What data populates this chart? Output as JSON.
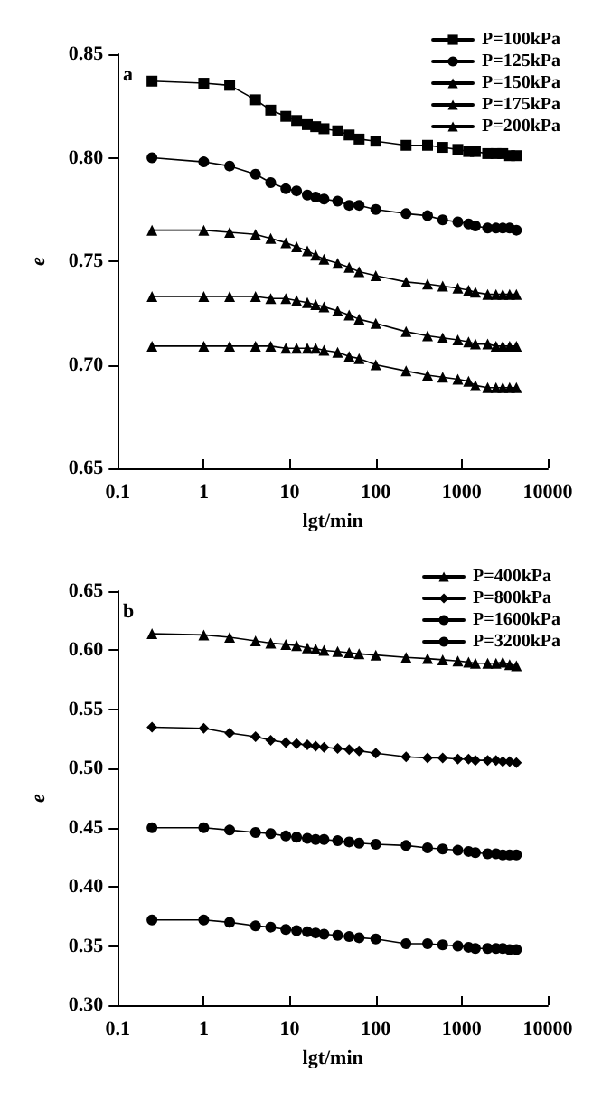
{
  "chart_data": [
    {
      "type": "line",
      "xlabel": "lgt/min",
      "ylabel": "e",
      "annotations": [
        "a"
      ],
      "log": "x",
      "xlim": [
        0.1,
        10000
      ],
      "xticks": [
        0.1,
        1,
        10,
        100,
        1000,
        10000
      ],
      "ylim": [
        0.65,
        0.85
      ],
      "yticks": [
        0.65,
        {
          "value": 0.7,
          "label": "0.70"
        },
        0.75,
        {
          "value": 0.8,
          "label": "0.80"
        },
        0.85
      ],
      "grid": false,
      "legend": "top right",
      "line_style": "solid",
      "x": [
        0.25,
        1,
        2,
        4,
        6,
        9,
        12,
        16,
        20,
        25,
        36,
        49,
        64,
        100,
        225,
        400,
        600,
        900,
        1200,
        1440,
        2000,
        2500,
        3000,
        3600,
        4320
      ],
      "series": [
        {
          "name": "P=100kPa",
          "color": "#000000",
          "marker": "square",
          "values": [
            0.837,
            0.836,
            0.835,
            0.828,
            0.823,
            0.82,
            0.818,
            0.816,
            0.815,
            0.814,
            0.813,
            0.811,
            0.809,
            0.808,
            0.806,
            0.806,
            0.805,
            0.804,
            0.803,
            0.803,
            0.802,
            0.802,
            0.802,
            0.801,
            0.801
          ]
        },
        {
          "name": "P=125kPa",
          "color": "#000000",
          "marker": "circle",
          "values": [
            0.8,
            0.798,
            0.796,
            0.792,
            0.788,
            0.785,
            0.784,
            0.782,
            0.781,
            0.78,
            0.779,
            0.777,
            0.777,
            0.775,
            0.773,
            0.772,
            0.77,
            0.769,
            0.768,
            0.767,
            0.766,
            0.766,
            0.766,
            0.766,
            0.765
          ]
        },
        {
          "name": "P=150kPa",
          "color": "#000000",
          "marker": "triangle",
          "values": [
            0.765,
            0.765,
            0.764,
            0.763,
            0.761,
            0.759,
            0.757,
            0.755,
            0.753,
            0.751,
            0.749,
            0.747,
            0.745,
            0.743,
            0.74,
            0.739,
            0.738,
            0.737,
            0.736,
            0.735,
            0.734,
            0.734,
            0.734,
            0.734,
            0.734
          ]
        },
        {
          "name": "P=175kPa",
          "color": "#000000",
          "marker": "triangle",
          "values": [
            0.733,
            0.733,
            0.733,
            0.733,
            0.732,
            0.732,
            0.731,
            0.73,
            0.729,
            0.728,
            0.726,
            0.724,
            0.722,
            0.72,
            0.716,
            0.714,
            0.713,
            0.712,
            0.711,
            0.71,
            0.71,
            0.709,
            0.709,
            0.709,
            0.709
          ]
        },
        {
          "name": "P=200kPa",
          "color": "#000000",
          "marker": "triangle",
          "values": [
            0.709,
            0.709,
            0.709,
            0.709,
            0.709,
            0.708,
            0.708,
            0.708,
            0.708,
            0.707,
            0.706,
            0.704,
            0.703,
            0.7,
            0.697,
            0.695,
            0.694,
            0.693,
            0.692,
            0.69,
            0.689,
            0.689,
            0.689,
            0.689,
            0.689
          ]
        }
      ]
    },
    {
      "type": "line",
      "xlabel": "lgt/min",
      "ylabel": "e",
      "annotations": [
        "b"
      ],
      "log": "x",
      "xlim": [
        0.1,
        10000
      ],
      "xticks": [
        0.1,
        1,
        10,
        100,
        1000,
        10000
      ],
      "ylim": [
        0.3,
        0.65
      ],
      "yticks": [
        {
          "value": 0.3,
          "label": "0.30"
        },
        0.35,
        {
          "value": 0.4,
          "label": "0.40"
        },
        0.45,
        {
          "value": 0.5,
          "label": "0.50"
        },
        0.55,
        {
          "value": 0.6,
          "label": "0.60"
        },
        0.65
      ],
      "grid": false,
      "legend": "top right",
      "line_style": "solid",
      "x": [
        0.25,
        1,
        2,
        4,
        6,
        9,
        12,
        16,
        20,
        25,
        36,
        49,
        64,
        100,
        225,
        400,
        600,
        900,
        1200,
        1440,
        2000,
        2500,
        3000,
        3600,
        4320
      ],
      "series": [
        {
          "name": "P=400kPa",
          "color": "#000000",
          "marker": "triangle",
          "values": [
            0.614,
            0.613,
            0.611,
            0.608,
            0.606,
            0.605,
            0.604,
            0.602,
            0.601,
            0.6,
            0.599,
            0.598,
            0.597,
            0.596,
            0.594,
            0.593,
            0.592,
            0.591,
            0.59,
            0.589,
            0.589,
            0.589,
            0.59,
            0.588,
            0.587
          ]
        },
        {
          "name": "P=800kPa",
          "color": "#000000",
          "marker": "diamond",
          "values": [
            0.535,
            0.534,
            0.53,
            0.527,
            0.524,
            0.522,
            0.521,
            0.52,
            0.519,
            0.518,
            0.517,
            0.516,
            0.515,
            0.513,
            0.51,
            0.509,
            0.509,
            0.508,
            0.508,
            0.507,
            0.507,
            0.507,
            0.506,
            0.506,
            0.505
          ]
        },
        {
          "name": "P=1600kPa",
          "color": "#000000",
          "marker": "circle",
          "values": [
            0.45,
            0.45,
            0.448,
            0.446,
            0.445,
            0.443,
            0.442,
            0.441,
            0.44,
            0.44,
            0.439,
            0.438,
            0.437,
            0.436,
            0.435,
            0.433,
            0.432,
            0.431,
            0.43,
            0.429,
            0.428,
            0.428,
            0.427,
            0.427,
            0.427
          ]
        },
        {
          "name": "P=3200kPa",
          "color": "#000000",
          "marker": "circle",
          "values": [
            0.372,
            0.372,
            0.37,
            0.367,
            0.366,
            0.364,
            0.363,
            0.362,
            0.361,
            0.36,
            0.359,
            0.358,
            0.357,
            0.356,
            0.352,
            0.352,
            0.351,
            0.35,
            0.349,
            0.348,
            0.348,
            0.348,
            0.348,
            0.347,
            0.347
          ]
        }
      ]
    }
  ]
}
